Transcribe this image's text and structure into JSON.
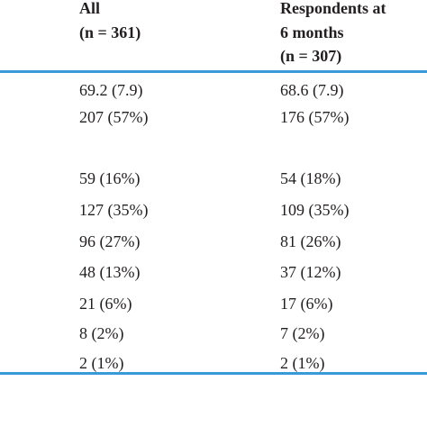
{
  "table": {
    "header": [
      [
        "All",
        "(n = 361)"
      ],
      [
        "Respondents at",
        "6 months",
        "(n = 307)"
      ]
    ],
    "rows": [
      [
        "69.2 (7.9)",
        "68.6 (7.9)"
      ],
      [
        "207 (57%)",
        "176 (57%)"
      ],
      [
        "59 (16%)",
        "54 (18%)"
      ],
      [
        "127 (35%)",
        "109 (35%)"
      ],
      [
        "96 (27%)",
        "81 (26%)"
      ],
      [
        "48 (13%)",
        "37 (12%)"
      ],
      [
        "21 (6%)",
        "17 (6%)"
      ],
      [
        "8 (2%)",
        "7 (2%)"
      ],
      [
        "2 (1%)",
        "2 (1%)"
      ]
    ]
  }
}
